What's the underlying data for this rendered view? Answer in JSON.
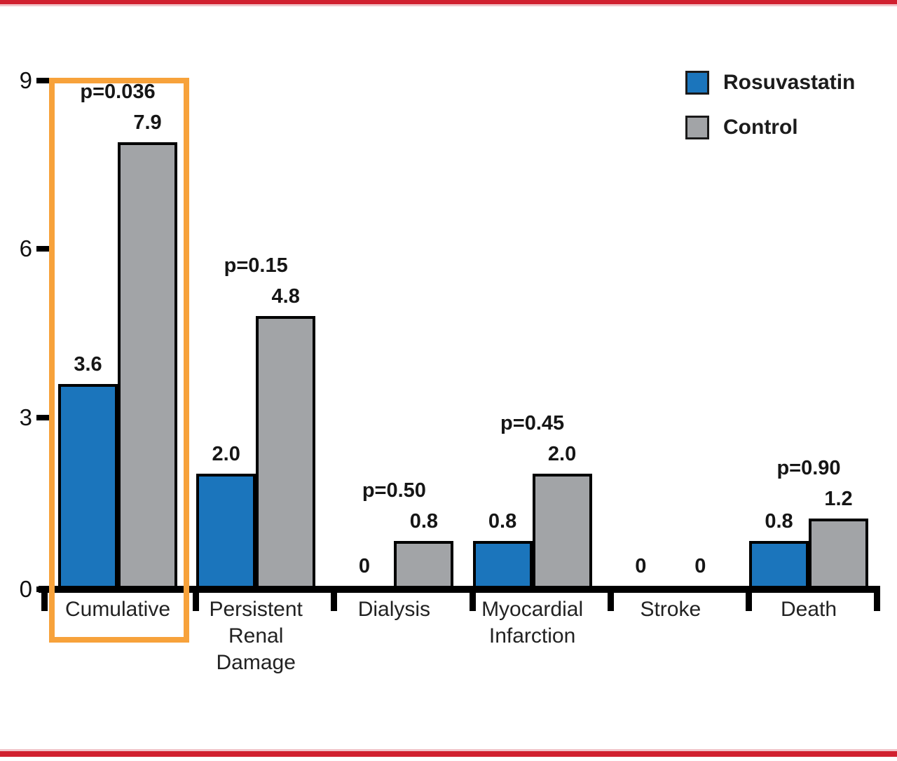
{
  "page": {
    "top_rule_color": "#D1202F",
    "bottom_rule_color": "#D1202F",
    "rule_accent_pink": "#F1C5CA",
    "background": "#FFFFFF"
  },
  "legend": {
    "position": "top-right",
    "items": [
      {
        "label": "Rosuvastatin",
        "color": "#1B75BC"
      },
      {
        "label": "Control",
        "color": "#A2A4A7"
      }
    ]
  },
  "highlight": {
    "target_category": "Cumulative",
    "color": "#F7A23B",
    "shape": "rectangle-outline"
  },
  "chart_data": {
    "type": "bar",
    "title": "",
    "xlabel": "",
    "ylabel": "",
    "ylim": [
      0,
      9
    ],
    "y_ticks": [
      9,
      6,
      3,
      0
    ],
    "grid": false,
    "legend_position": "top-right",
    "categories": [
      "Cumulative",
      "Persistent Renal Damage",
      "Dialysis",
      "Myocardial Infarction",
      "Stroke",
      "Death"
    ],
    "category_lines": [
      [
        "Cumulative"
      ],
      [
        "Persistent",
        "Renal",
        "Damage"
      ],
      [
        "Dialysis"
      ],
      [
        "Myocardial",
        "Infarction"
      ],
      [
        "Stroke"
      ],
      [
        "Death"
      ]
    ],
    "series": [
      {
        "name": "Rosuvastatin",
        "color": "#1B75BC",
        "values": [
          3.6,
          2.0,
          0,
          0.8,
          0,
          0.8
        ]
      },
      {
        "name": "Control",
        "color": "#A2A4A7",
        "values": [
          7.9,
          4.8,
          0.8,
          2.0,
          0,
          1.2
        ]
      }
    ],
    "value_labels": [
      [
        "3.6",
        "7.9"
      ],
      [
        "2.0",
        "4.8"
      ],
      [
        "0",
        "0.8"
      ],
      [
        "0.8",
        "2.0"
      ],
      [
        "0",
        "0"
      ],
      [
        "0.8",
        "1.2"
      ]
    ],
    "p_values": [
      "p=0.036",
      "p=0.15",
      "p=0.50",
      "p=0.45",
      null,
      "p=0.90"
    ]
  }
}
